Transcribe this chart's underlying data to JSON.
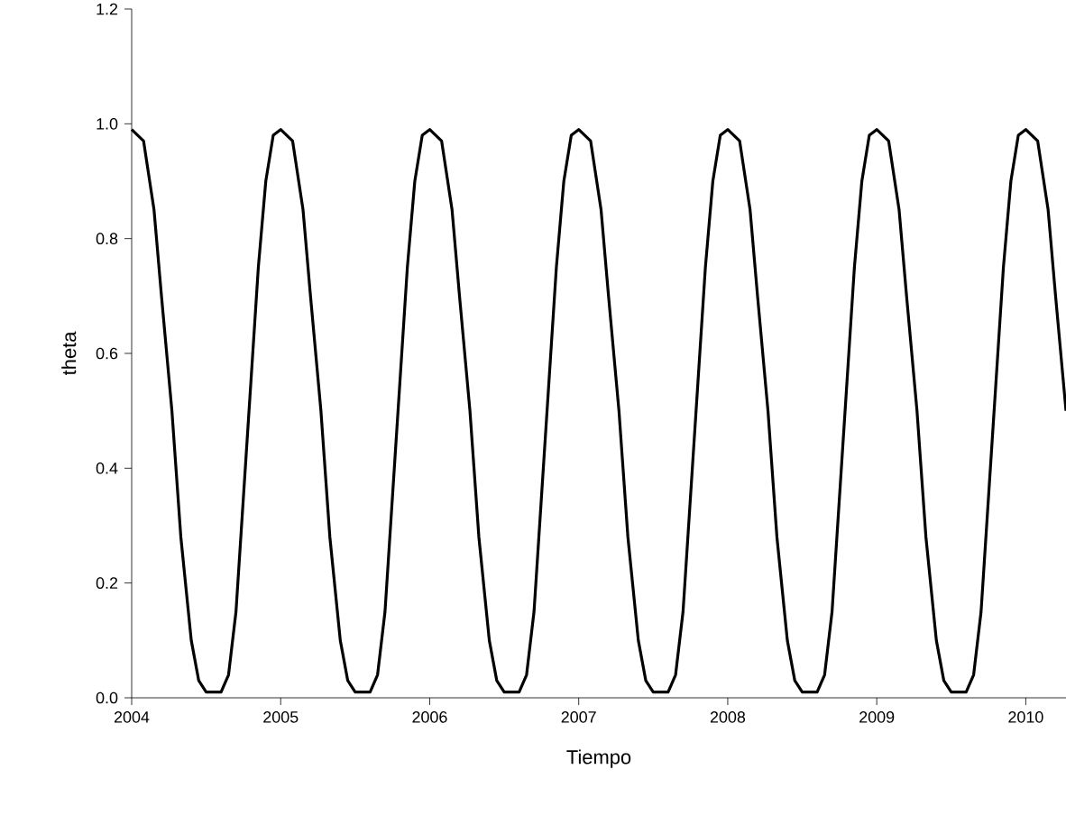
{
  "chart_data": {
    "type": "line",
    "xlabel": "Tiempo",
    "ylabel": "theta",
    "xlim": [
      2004,
      2010.27
    ],
    "ylim": [
      0,
      1.2
    ],
    "xticks": [
      2004,
      2005,
      2006,
      2007,
      2008,
      2009,
      2010
    ],
    "yticks": [
      {
        "value": 0,
        "label": "0.0"
      },
      {
        "value": 0.2,
        "label": "0.2"
      },
      {
        "value": 0.4,
        "label": "0.4"
      },
      {
        "value": 0.6,
        "label": "0.6"
      },
      {
        "value": 0.8,
        "label": "0.8"
      },
      {
        "value": 1.0,
        "label": "1.0"
      },
      {
        "value": 1.2,
        "label": "1.2"
      }
    ],
    "grid": false,
    "marker": "none",
    "line_style": "solid",
    "series": [
      {
        "color": "#000000",
        "x": [
          2004,
          2004.08,
          2004.15,
          2004.2,
          2004.27,
          2004.33,
          2004.4,
          2004.45,
          2004.5,
          2004.6,
          2004.65,
          2004.7,
          2004.75,
          2004.8,
          2004.85,
          2004.9,
          2004.95,
          2005,
          2005.08,
          2005.15,
          2005.2,
          2005.27,
          2005.33,
          2005.4,
          2005.45,
          2005.5,
          2005.6,
          2005.65,
          2005.7,
          2005.75,
          2005.8,
          2005.85,
          2005.9,
          2005.95,
          2006,
          2006.08,
          2006.15,
          2006.2,
          2006.27,
          2006.33,
          2006.4,
          2006.45,
          2006.5,
          2006.6,
          2006.65,
          2006.7,
          2006.75,
          2006.8,
          2006.85,
          2006.9,
          2006.95,
          2007,
          2007.08,
          2007.15,
          2007.2,
          2007.27,
          2007.33,
          2007.4,
          2007.45,
          2007.5,
          2007.6,
          2007.65,
          2007.7,
          2007.75,
          2007.8,
          2007.85,
          2007.9,
          2007.95,
          2008,
          2008.08,
          2008.15,
          2008.2,
          2008.27,
          2008.33,
          2008.4,
          2008.45,
          2008.5,
          2008.6,
          2008.65,
          2008.7,
          2008.75,
          2008.8,
          2008.85,
          2008.9,
          2008.95,
          2009,
          2009.08,
          2009.15,
          2009.2,
          2009.27,
          2009.33,
          2009.4,
          2009.45,
          2009.5,
          2009.6,
          2009.65,
          2009.7,
          2009.75,
          2009.8,
          2009.85,
          2009.9,
          2009.95,
          2010,
          2010.08,
          2010.15,
          2010.2,
          2010.27
        ],
        "values": [
          0.99,
          0.97,
          0.85,
          0.7,
          0.5,
          0.28,
          0.1,
          0.03,
          0.01,
          0.01,
          0.04,
          0.15,
          0.35,
          0.55,
          0.75,
          0.9,
          0.98,
          0.99,
          0.97,
          0.85,
          0.7,
          0.5,
          0.28,
          0.1,
          0.03,
          0.01,
          0.01,
          0.04,
          0.15,
          0.35,
          0.55,
          0.75,
          0.9,
          0.98,
          0.99,
          0.97,
          0.85,
          0.7,
          0.5,
          0.28,
          0.1,
          0.03,
          0.01,
          0.01,
          0.04,
          0.15,
          0.35,
          0.55,
          0.75,
          0.9,
          0.98,
          0.99,
          0.97,
          0.85,
          0.7,
          0.5,
          0.28,
          0.1,
          0.03,
          0.01,
          0.01,
          0.04,
          0.15,
          0.35,
          0.55,
          0.75,
          0.9,
          0.98,
          0.99,
          0.97,
          0.85,
          0.7,
          0.5,
          0.28,
          0.1,
          0.03,
          0.01,
          0.01,
          0.04,
          0.15,
          0.35,
          0.55,
          0.75,
          0.9,
          0.98,
          0.99,
          0.97,
          0.85,
          0.7,
          0.5,
          0.28,
          0.1,
          0.03,
          0.01,
          0.01,
          0.04,
          0.15,
          0.35,
          0.55,
          0.75,
          0.9,
          0.98,
          0.99,
          0.97,
          0.85,
          0.7,
          0.5
        ]
      }
    ]
  }
}
